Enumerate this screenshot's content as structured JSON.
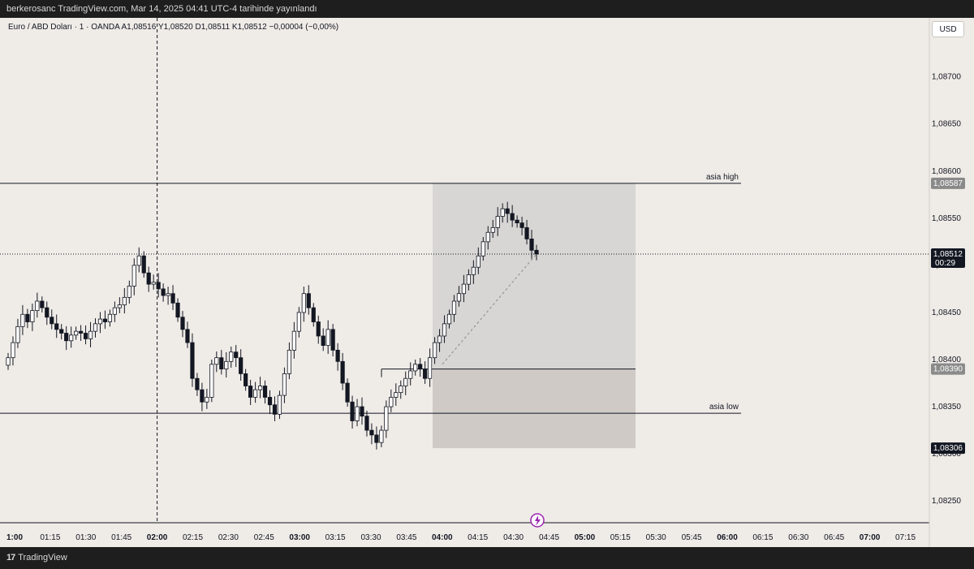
{
  "header": {
    "publish_info": "berkerosanc TradingView.com, Mar 14, 2025 04:41 UTC-4 tarihinde yayınlandı"
  },
  "symbol_bar": {
    "text": "Euro / ABD Doları · 1 · OANDA  A1,08516  Y1,08520  D1,08511  K1,08512  −0,00004 (−0,00%)"
  },
  "currency_button": "USD",
  "footer": {
    "brand": "TradingView"
  },
  "colors": {
    "background": "#efebe7",
    "candle": "#131722",
    "zone_upper": "#d8d6d4",
    "zone_lower": "#cfcac6",
    "label_gray": "#8a8a8a",
    "label_black": "#131722"
  },
  "chart_data": {
    "type": "candlestick",
    "symbol": "Euro / ABD Doları",
    "interval": "1",
    "ylim": [
      1.0822,
      1.0876
    ],
    "x_ticks": [
      "1:00",
      "01:15",
      "01:30",
      "01:45",
      "02:00",
      "02:15",
      "02:30",
      "02:45",
      "03:00",
      "03:15",
      "03:30",
      "03:45",
      "04:00",
      "04:15",
      "04:30",
      "04:45",
      "05:00",
      "05:15",
      "05:30",
      "05:45",
      "06:00",
      "06:15",
      "06:30",
      "06:45",
      "07:00",
      "07:15"
    ],
    "x_ticks_bold": [
      "1:00",
      "02:00",
      "03:00",
      "04:00",
      "05:00",
      "06:00",
      "07:00"
    ],
    "y_ticks": [
      "1,08250",
      "1,08300",
      "1,08350",
      "1,08400",
      "1,08450",
      "1,08500",
      "1,08550",
      "1,08600",
      "1,08650",
      "1,08700"
    ],
    "y_tick_values": [
      1.0825,
      1.083,
      1.0835,
      1.084,
      1.0845,
      1.085,
      1.0855,
      1.086,
      1.0865,
      1.087
    ],
    "series_close": [
      1.08402,
      1.08418,
      1.08435,
      1.08448,
      1.0844,
      1.08452,
      1.08462,
      1.08455,
      1.08445,
      1.08438,
      1.08432,
      1.08428,
      1.0842,
      1.08426,
      1.0843,
      1.08428,
      1.08422,
      1.0843,
      1.08438,
      1.08443,
      1.0844,
      1.08448,
      1.08455,
      1.08458,
      1.08466,
      1.08478,
      1.085,
      1.0851,
      1.08492,
      1.0848,
      1.08482,
      1.08475,
      1.08468,
      1.0847,
      1.0846,
      1.08445,
      1.08432,
      1.08418,
      1.0838,
      1.08368,
      1.08355,
      1.0836,
      1.08395,
      1.08402,
      1.0839,
      1.08398,
      1.08408,
      1.08402,
      1.08385,
      1.08372,
      1.0836,
      1.08368,
      1.08372,
      1.0836,
      1.08352,
      1.08342,
      1.08362,
      1.08385,
      1.0841,
      1.0843,
      1.0845,
      1.0847,
      1.08455,
      1.0844,
      1.08425,
      1.08415,
      1.08432,
      1.0841,
      1.08398,
      1.08375,
      1.08355,
      1.08335,
      1.0835,
      1.0834,
      1.08325,
      1.0832,
      1.08312,
      1.08325,
      1.0835,
      1.0836,
      1.08365,
      1.08372,
      1.0838,
      1.08388,
      1.08395,
      1.0839,
      1.0838,
      1.08402,
      1.08418,
      1.08425,
      1.08438,
      1.08448,
      1.08462,
      1.0847,
      1.0848,
      1.0849,
      1.08498,
      1.0851,
      1.08525,
      1.08535,
      1.0854,
      1.08552,
      1.0856,
      1.08555,
      1.08548,
      1.08545,
      1.0854,
      1.08528,
      1.08516,
      1.08512
    ],
    "horizontal_lines": [
      {
        "label": "asia high",
        "value": 1.08587,
        "price_label": "1,08587"
      },
      {
        "label": "asia low",
        "value": 1.08343,
        "price_label": ""
      },
      {
        "label": "",
        "value": 1.0839,
        "price_label": "1,08390"
      }
    ],
    "last_price": {
      "value": 1.08512,
      "price_label": "1,08512",
      "countdown": "00:29"
    },
    "zone": {
      "top": 1.08587,
      "middle": 1.0839,
      "bottom": 1.08306,
      "price_label": "1,08306"
    },
    "vertical_marker": "02:00",
    "grid": false
  }
}
